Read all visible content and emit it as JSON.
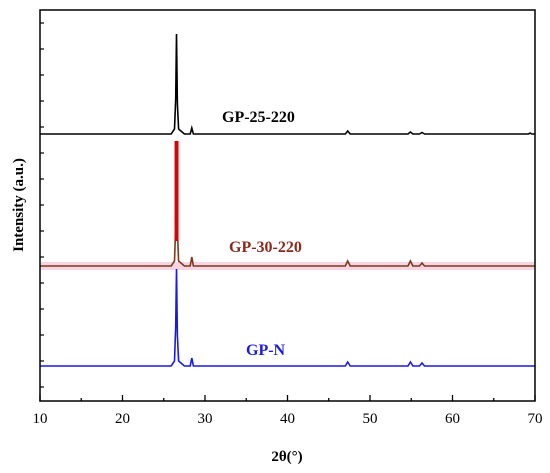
{
  "chart_data": {
    "type": "line",
    "title": "",
    "xlabel": "2θ(°)",
    "ylabel": "Intensity (a.u.)",
    "xlim": [
      10,
      70
    ],
    "xticks": [
      10,
      20,
      30,
      40,
      50,
      60,
      70
    ],
    "y_ticks_shown": false,
    "grid": false,
    "legend": "inline labels next to each trace",
    "series": [
      {
        "name": "GP-25-220",
        "color": "#000000",
        "baseline": 2.0,
        "points": [
          [
            10,
            0
          ],
          [
            25.9,
            0
          ],
          [
            26.3,
            0.05
          ],
          [
            26.45,
            0.35
          ],
          [
            26.55,
            1.0
          ],
          [
            26.65,
            0.3
          ],
          [
            26.8,
            0.05
          ],
          [
            27.5,
            0
          ],
          [
            28.2,
            0
          ],
          [
            28.4,
            0.06
          ],
          [
            28.6,
            0
          ],
          [
            47.0,
            0
          ],
          [
            47.3,
            0.03
          ],
          [
            47.6,
            0
          ],
          [
            54.6,
            0
          ],
          [
            54.9,
            0.02
          ],
          [
            55.2,
            0
          ],
          [
            56.0,
            0
          ],
          [
            56.3,
            0.015
          ],
          [
            56.6,
            0
          ],
          [
            69.2,
            0
          ],
          [
            69.4,
            0.01
          ],
          [
            69.6,
            0
          ],
          [
            70,
            0
          ]
        ]
      },
      {
        "name": "GP-30-220",
        "color": "#7a3a20",
        "highlight_color": "#e00000",
        "baseline": 1.0,
        "points": [
          [
            10,
            0
          ],
          [
            25.9,
            0
          ],
          [
            26.3,
            0.05
          ],
          [
            26.45,
            0.4
          ],
          [
            26.55,
            1.25
          ],
          [
            26.65,
            0.35
          ],
          [
            26.8,
            0.05
          ],
          [
            27.5,
            0
          ],
          [
            28.2,
            0
          ],
          [
            28.4,
            0.09
          ],
          [
            28.6,
            0
          ],
          [
            47.0,
            0
          ],
          [
            47.3,
            0.05
          ],
          [
            47.6,
            0
          ],
          [
            54.6,
            0
          ],
          [
            54.9,
            0.05
          ],
          [
            55.2,
            0
          ],
          [
            56.0,
            0
          ],
          [
            56.3,
            0.03
          ],
          [
            56.6,
            0
          ],
          [
            70,
            0
          ]
        ]
      },
      {
        "name": "GP-N",
        "color": "#1a1ae6",
        "baseline": 0.0,
        "points": [
          [
            10,
            0
          ],
          [
            25.9,
            0
          ],
          [
            26.3,
            0.05
          ],
          [
            26.45,
            0.4
          ],
          [
            26.55,
            0.97
          ],
          [
            26.65,
            0.3
          ],
          [
            26.8,
            0.05
          ],
          [
            27.5,
            0
          ],
          [
            28.2,
            0
          ],
          [
            28.4,
            0.08
          ],
          [
            28.6,
            0
          ],
          [
            47.0,
            0
          ],
          [
            47.3,
            0.04
          ],
          [
            47.6,
            0
          ],
          [
            54.6,
            0
          ],
          [
            54.9,
            0.04
          ],
          [
            55.2,
            0
          ],
          [
            56.0,
            0
          ],
          [
            56.3,
            0.03
          ],
          [
            56.6,
            0
          ],
          [
            70,
            0
          ]
        ]
      }
    ]
  }
}
